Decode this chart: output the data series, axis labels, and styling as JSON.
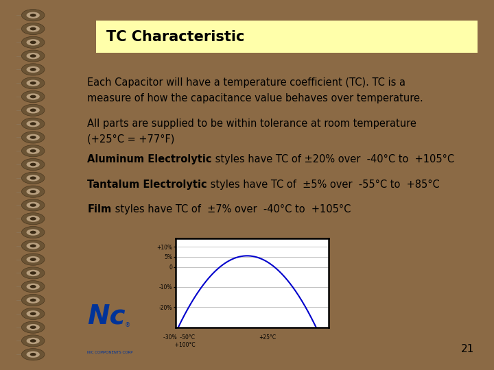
{
  "bg_outer": "#8B6A45",
  "bg_inner": "#FFFFFF",
  "title_text": "TC Characteristic",
  "title_bg": "#FFFFAA",
  "title_color": "#000000",
  "title_fontsize": 15,
  "body_fontsize": 10.5,
  "bold_fontsize": 10.5,
  "para1": "Each Capacitor will have a temperature coefficient (TC). TC is a\nmeasure of how the capacitance value behaves over temperature.",
  "para2": "All parts are supplied to be within tolerance at room temperature\n(+25°C = +77°F)",
  "line1_bold": "Aluminum Electrolytic",
  "line1_rest": " styles have TC of ±20% over  -40°C to  +105°C",
  "line2_bold": "Tantalum Electrolytic",
  "line2_rest": " styles have TC of  ±5% over  -55°C to  +85°C",
  "line3_bold": "Film",
  "line3_rest": " styles have TC of  ±7% over  -40°C to  +105°C",
  "page_number": "21",
  "curve_color": "#0000CC"
}
